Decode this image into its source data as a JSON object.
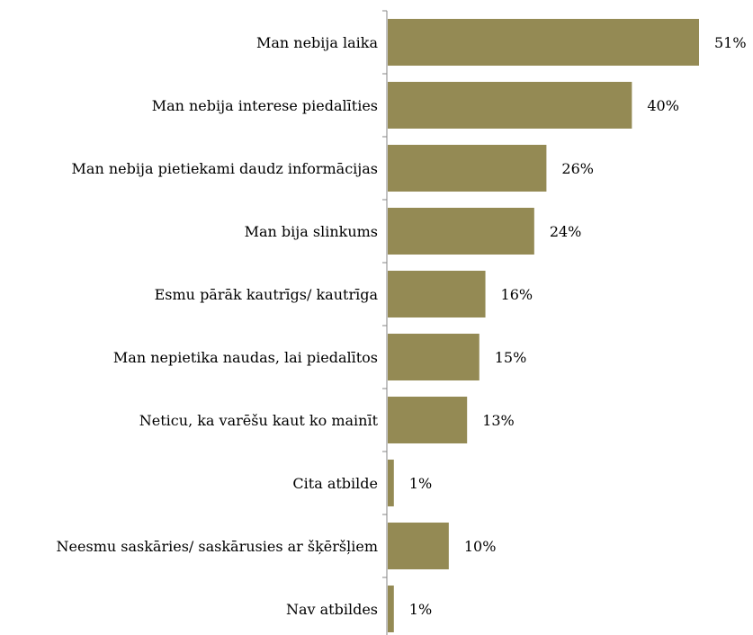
{
  "chart_data": {
    "type": "bar",
    "orientation": "horizontal",
    "categories": [
      "Man nebija laika",
      "Man nebija interese piedalīties",
      "Man nebija pietiekami daudz informācijas",
      "Man bija slinkums",
      "Esmu pārāk kautrīgs/ kautrīga",
      "Man nepietika naudas, lai piedalītos",
      "Neticu, ka varēšu kaut ko mainīt",
      "Cita atbilde",
      "Neesmu saskāries/ saskārusies ar šķēršļiem",
      "Nav atbildes"
    ],
    "values": [
      51,
      40,
      26,
      24,
      16,
      15,
      13,
      1,
      10,
      1
    ],
    "value_labels": [
      "51%",
      "40%",
      "26%",
      "24%",
      "16%",
      "15%",
      "13%",
      "1%",
      "10%",
      "1%"
    ],
    "unit": "%",
    "xlim": [
      0,
      53
    ],
    "grid": false,
    "legend": "none",
    "bar_color": "#948a54"
  }
}
